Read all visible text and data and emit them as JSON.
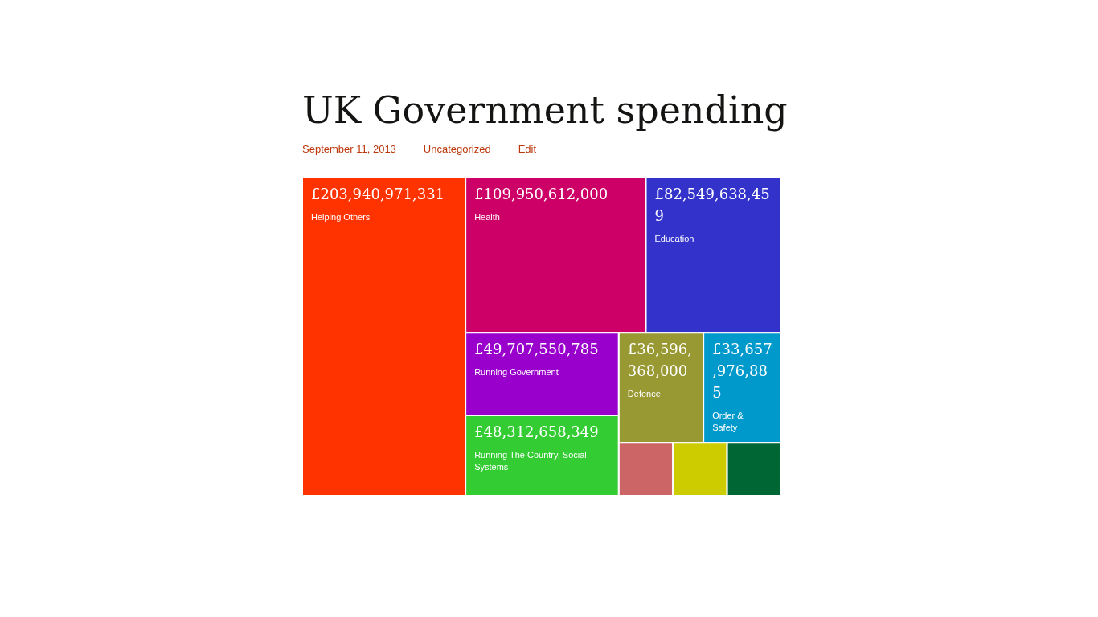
{
  "chart_data": {
    "type": "other",
    "title": "UK Government spending",
    "annotations": [
      "September 11, 2013",
      "Uncategorized",
      "Edit"
    ],
    "categories": [
      "Helping Others",
      "Health",
      "Education",
      "Running Government",
      "Running The Country, Social Systems",
      "Defence",
      "Order & Safety",
      null,
      null,
      null
    ],
    "values": [
      203940971331,
      109950612000,
      82549638459,
      49707550785,
      48312658349,
      36596368000,
      33657976885,
      null,
      null,
      null
    ],
    "value_labels": [
      "£203,940,971,331",
      "£109,950,612,000",
      "£82,549,638,459",
      "£49,707,550,785",
      "£48,312,658,349",
      "£36,596,368,000",
      "£33,657,976,885",
      null,
      null,
      null
    ],
    "colors": [
      "#ff3300",
      "#cc0066",
      "#3333cc",
      "#9900cc",
      "#33cc33",
      "#999933",
      "#0099cc",
      "#cc6666",
      "#cccc00",
      "#006633"
    ]
  }
}
